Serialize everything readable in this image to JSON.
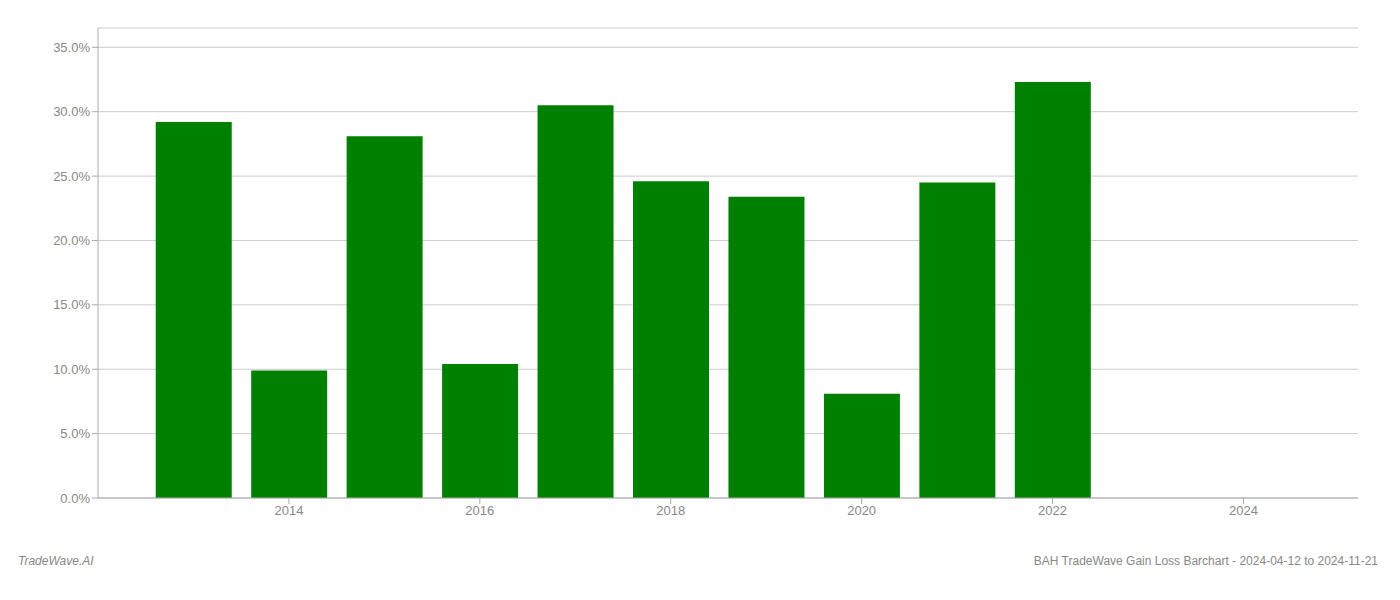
{
  "chart_data": {
    "type": "bar",
    "x": [
      2013,
      2014,
      2015,
      2016,
      2017,
      2018,
      2019,
      2020,
      2021,
      2022,
      2023
    ],
    "values": [
      0.292,
      0.099,
      0.281,
      0.104,
      0.305,
      0.246,
      0.234,
      0.081,
      0.245,
      0.323,
      0.0
    ],
    "color": "#008000",
    "xlim": [
      2012.0,
      2025.2
    ],
    "xticks": [
      2014,
      2016,
      2018,
      2020,
      2022,
      2024
    ],
    "ylim": [
      0.0,
      0.365
    ],
    "yticks": [
      {
        "value": 0.0,
        "label": "0.0%"
      },
      {
        "value": 0.05,
        "label": "5.0%"
      },
      {
        "value": 0.1,
        "label": "10.0%"
      },
      {
        "value": 0.15,
        "label": "15.0%"
      },
      {
        "value": 0.2,
        "label": "20.0%"
      },
      {
        "value": 0.25,
        "label": "25.0%"
      },
      {
        "value": 0.3,
        "label": "30.0%"
      },
      {
        "value": 0.35,
        "label": "35.0%"
      }
    ],
    "grid": true,
    "annotations": [
      "TradeWave.AI",
      "BAH TradeWave Gain Loss Barchart - 2024-04-12 to 2024-11-21"
    ]
  }
}
